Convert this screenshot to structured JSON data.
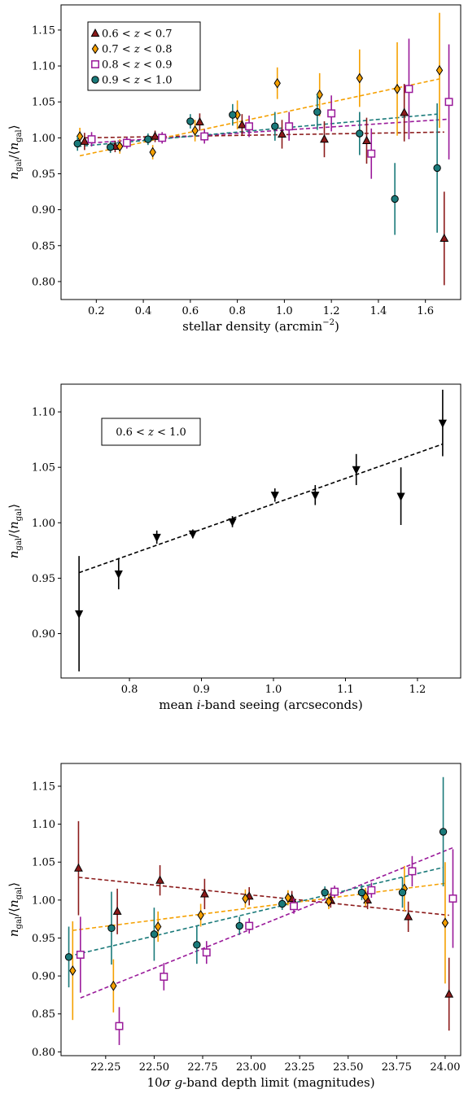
{
  "figure": {
    "ylabel": "n_gal/⟨n_gal⟩"
  },
  "chart_data": [
    {
      "type": "scatter",
      "xlabel": "stellar density (arcmin^-2)",
      "ylabel": "n_gal/⟨n_gal⟩",
      "xlim": [
        0.05,
        1.75
      ],
      "ylim": [
        0.775,
        1.185
      ],
      "xticks": [
        0.2,
        0.4,
        0.6,
        0.8,
        1.0,
        1.2,
        1.4,
        1.6
      ],
      "yticks": [
        0.8,
        0.85,
        0.9,
        0.95,
        1.0,
        1.05,
        1.1,
        1.15
      ],
      "legend": {
        "placement": "top-left",
        "framed": true
      },
      "series": [
        {
          "name": "0.6 < z < 0.7",
          "color": "#8b1a1a",
          "marker": "triangle-up",
          "x": [
            0.15,
            0.28,
            0.45,
            0.64,
            0.82,
            0.99,
            1.17,
            1.35,
            1.51,
            1.68
          ],
          "y": [
            0.995,
            0.988,
            1.002,
            1.022,
            1.018,
            1.005,
            0.998,
            0.996,
            1.035,
            0.86
          ],
          "err": [
            0.012,
            0.008,
            0.008,
            0.012,
            0.015,
            0.02,
            0.025,
            0.032,
            0.04,
            0.065
          ],
          "fit": [
            1.0,
            1.008
          ]
        },
        {
          "name": "0.7 < z < 0.8",
          "color": "#f5a000",
          "marker": "diamond",
          "x": [
            0.13,
            0.3,
            0.44,
            0.62,
            0.8,
            0.97,
            1.15,
            1.32,
            1.48,
            1.66
          ],
          "y": [
            1.002,
            0.988,
            0.98,
            1.01,
            1.032,
            1.076,
            1.06,
            1.083,
            1.068,
            1.094
          ],
          "err": [
            0.012,
            0.01,
            0.01,
            0.015,
            0.02,
            0.022,
            0.03,
            0.04,
            0.065,
            0.08
          ],
          "fit": [
            0.975,
            1.082
          ]
        },
        {
          "name": "0.8 < z < 0.9",
          "color": "#9a1a9a",
          "marker": "square",
          "x": [
            0.18,
            0.33,
            0.48,
            0.66,
            0.85,
            1.02,
            1.2,
            1.37,
            1.53,
            1.7
          ],
          "y": [
            0.998,
            0.993,
            1.0,
            1.002,
            1.016,
            1.016,
            1.034,
            0.978,
            1.068,
            1.05
          ],
          "err": [
            0.01,
            0.008,
            0.008,
            0.01,
            0.015,
            0.02,
            0.025,
            0.035,
            0.07,
            0.08
          ],
          "fit": [
            0.993,
            1.026
          ]
        },
        {
          "name": "0.9 < z < 1.0",
          "color": "#1a7a7a",
          "marker": "circle",
          "x": [
            0.12,
            0.26,
            0.42,
            0.6,
            0.78,
            0.96,
            1.14,
            1.32,
            1.47,
            1.65
          ],
          "y": [
            0.992,
            0.987,
            0.998,
            1.023,
            1.032,
            1.016,
            1.036,
            1.006,
            0.915,
            0.958
          ],
          "err": [
            0.01,
            0.008,
            0.008,
            0.01,
            0.015,
            0.02,
            0.025,
            0.03,
            0.05,
            0.09
          ],
          "fit": [
            0.988,
            1.033
          ]
        }
      ]
    },
    {
      "type": "scatter",
      "xlabel": "mean i-band seeing (arcseconds)",
      "ylabel": "n_gal/⟨n_gal⟩",
      "xlim": [
        0.705,
        1.26
      ],
      "ylim": [
        0.86,
        1.125
      ],
      "xticks": [
        0.8,
        0.9,
        1.0,
        1.1,
        1.2
      ],
      "yticks": [
        0.9,
        0.95,
        1.0,
        1.05,
        1.1
      ],
      "annotation": "0.6 < z < 1.0",
      "series": [
        {
          "name": "",
          "color": "#000000",
          "marker": "triangle-down",
          "x": [
            0.73,
            0.785,
            0.838,
            0.888,
            0.943,
            1.002,
            1.058,
            1.115,
            1.177,
            1.235
          ],
          "y": [
            0.918,
            0.954,
            0.987,
            0.99,
            1.001,
            1.025,
            1.025,
            1.048,
            1.024,
            1.09
          ],
          "err": [
            0.052,
            0.014,
            0.006,
            0.004,
            0.005,
            0.006,
            0.009,
            0.014,
            0.026,
            0.03
          ],
          "fit": [
            0.955,
            1.071
          ]
        }
      ]
    },
    {
      "type": "scatter",
      "xlabel": "10σ g-band depth limit (magnitudes)",
      "ylabel": "n_gal/⟨n_gal⟩",
      "xlim": [
        22.02,
        24.08
      ],
      "ylim": [
        0.795,
        1.18
      ],
      "xticks": [
        22.0,
        22.25,
        22.5,
        22.75,
        23.0,
        23.25,
        23.5,
        23.75,
        24.0
      ],
      "yticks": [
        0.8,
        0.85,
        0.9,
        0.95,
        1.0,
        1.05,
        1.1,
        1.15
      ],
      "series": [
        {
          "name": "0.6 < z < 0.7",
          "color": "#8b1a1a",
          "marker": "triangle-up",
          "x": [
            22.11,
            22.31,
            22.53,
            22.76,
            22.99,
            23.21,
            23.41,
            23.6,
            23.81,
            24.02
          ],
          "y": [
            1.042,
            0.985,
            1.026,
            1.008,
            1.005,
            1.002,
            1.0,
            1.0,
            0.978,
            0.876
          ],
          "err": [
            0.062,
            0.03,
            0.02,
            0.02,
            0.012,
            0.01,
            0.01,
            0.012,
            0.02,
            0.048
          ],
          "fit": [
            1.03,
            0.98
          ]
        },
        {
          "name": "0.7 < z < 0.8",
          "color": "#f5a000",
          "marker": "diamond",
          "x": [
            22.08,
            22.29,
            22.52,
            22.74,
            22.97,
            23.19,
            23.4,
            23.59,
            23.79,
            24.0
          ],
          "y": [
            0.907,
            0.887,
            0.965,
            0.98,
            1.002,
            1.003,
            0.998,
            1.004,
            1.015,
            0.97
          ],
          "err": [
            0.065,
            0.035,
            0.02,
            0.015,
            0.012,
            0.01,
            0.01,
            0.012,
            0.03,
            0.08
          ],
          "fit": [
            0.96,
            1.022
          ]
        },
        {
          "name": "0.8 < z < 0.9",
          "color": "#9a1a9a",
          "marker": "square",
          "x": [
            22.12,
            22.32,
            22.55,
            22.77,
            22.99,
            23.22,
            23.43,
            23.62,
            23.83,
            24.04
          ],
          "y": [
            0.928,
            0.834,
            0.899,
            0.931,
            0.966,
            0.992,
            1.011,
            1.013,
            1.038,
            1.002
          ],
          "err": [
            0.05,
            0.025,
            0.018,
            0.015,
            0.01,
            0.01,
            0.008,
            0.01,
            0.02,
            0.065
          ],
          "fit": [
            0.871,
            1.069
          ]
        },
        {
          "name": "0.9 < z < 1.0",
          "color": "#1a7a7a",
          "marker": "circle",
          "x": [
            22.06,
            22.28,
            22.5,
            22.72,
            22.94,
            23.16,
            23.38,
            23.57,
            23.78,
            23.99
          ],
          "y": [
            0.925,
            0.963,
            0.955,
            0.941,
            0.966,
            0.995,
            1.01,
            1.01,
            1.01,
            1.09
          ],
          "err": [
            0.04,
            0.048,
            0.035,
            0.025,
            0.012,
            0.008,
            0.008,
            0.01,
            0.02,
            0.072
          ],
          "fit": [
            0.926,
            1.043
          ]
        }
      ]
    }
  ]
}
